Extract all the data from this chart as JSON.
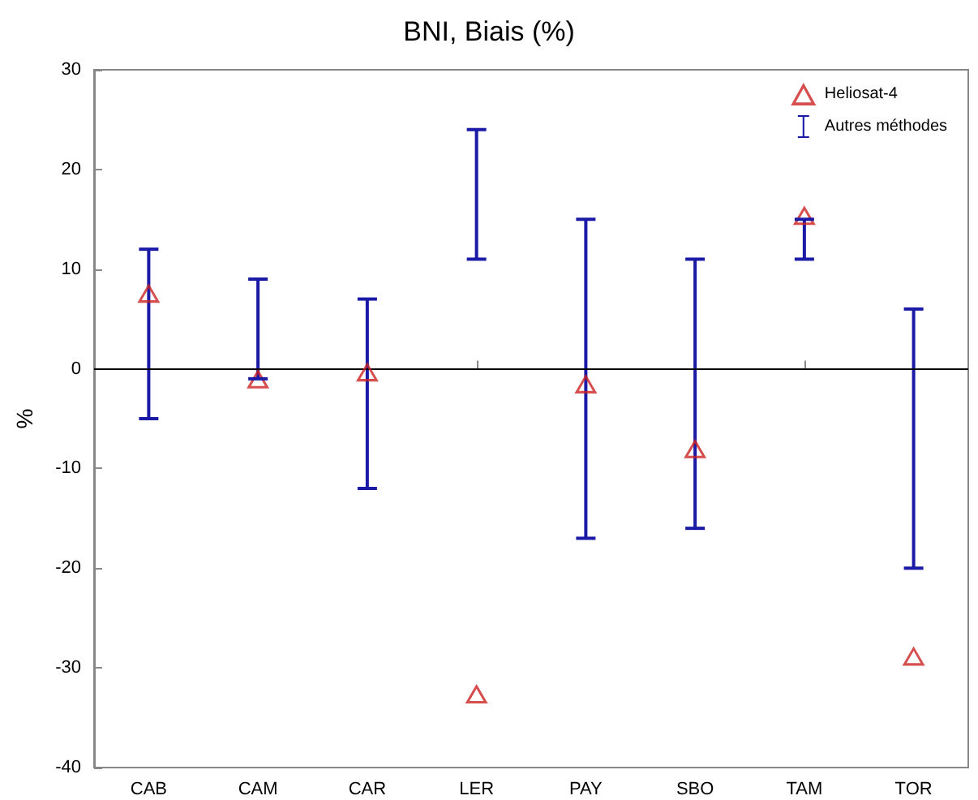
{
  "chart_data": {
    "type": "scatter",
    "title": "BNI, Biais (%)",
    "ylabel": "%",
    "categories": [
      "CAB",
      "CAM",
      "CAR",
      "LER",
      "PAY",
      "SBO",
      "TAM",
      "TOR"
    ],
    "series": [
      {
        "name": "Heliosat-4",
        "color": "#cc2222",
        "marker": "triangle",
        "values": [
          7.6,
          -1,
          -0.3,
          -32.6,
          -1.5,
          -8,
          15.4,
          -28.8
        ]
      },
      {
        "name": "Autres méthodes",
        "type": "bar",
        "color": "#1a1aa6",
        "base": [
          -5,
          -1,
          -12,
          11,
          -17,
          -16,
          11,
          -20
        ],
        "values": [
          17,
          10,
          19,
          13,
          32,
          27,
          4,
          26
        ]
      }
    ],
    "ylim": [
      -40,
      30
    ],
    "yticks": [
      -40,
      -30,
      -20,
      -10,
      0,
      10,
      20,
      30
    ],
    "ref_lines": [
      {
        "axis": "y",
        "value": 0,
        "color": "#000000"
      }
    ],
    "grid": false,
    "legend": "top right"
  }
}
